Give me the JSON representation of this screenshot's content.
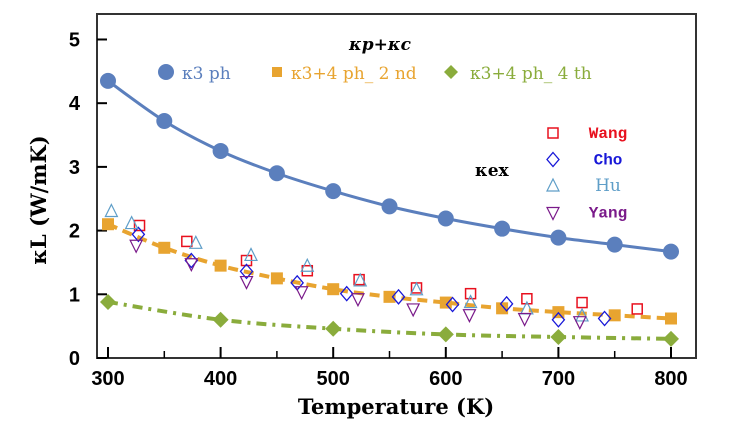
{
  "chart_data": {
    "type": "line",
    "title": "κp+κc",
    "xlabel": "Temperature (K)",
    "ylabel": "κL (W/mK)",
    "xlim": [
      290,
      822
    ],
    "ylim": [
      0,
      5.4
    ],
    "xticks": [
      300,
      400,
      500,
      600,
      700,
      800
    ],
    "yticks": [
      0,
      1,
      2,
      3,
      4,
      5
    ],
    "grid": false,
    "legend_placement": "top",
    "series": [
      {
        "name": "κ3 ph",
        "marker": "circle",
        "line": "solid",
        "color": "#5b7fbd",
        "x": [
          300,
          350,
          400,
          450,
          500,
          550,
          600,
          650,
          700,
          750,
          800
        ],
        "y": [
          4.35,
          3.72,
          3.25,
          2.9,
          2.62,
          2.38,
          2.19,
          2.03,
          1.89,
          1.78,
          1.67
        ]
      },
      {
        "name": "κ3+4 ph_ 2 nd",
        "marker": "square",
        "line": "dashed",
        "color": "#e8a430",
        "x": [
          300,
          350,
          400,
          450,
          500,
          550,
          600,
          650,
          700,
          750,
          800
        ],
        "y": [
          2.1,
          1.73,
          1.45,
          1.25,
          1.08,
          0.96,
          0.87,
          0.78,
          0.72,
          0.67,
          0.62
        ]
      },
      {
        "name": "κ3+4 ph_ 4 th",
        "marker": "diamond",
        "line": "dashdot",
        "color": "#8aac3c",
        "x": [
          300,
          400,
          500,
          600,
          700,
          800
        ],
        "y": [
          0.88,
          0.6,
          0.46,
          0.37,
          0.33,
          0.3
        ]
      }
    ],
    "experimental_label": "κex",
    "experimental": [
      {
        "name": "Wang",
        "marker": "square-open",
        "color": "#e8101e",
        "x": [
          328,
          370,
          423,
          477,
          523,
          574,
          622,
          672,
          721,
          770
        ],
        "y": [
          2.08,
          1.83,
          1.53,
          1.37,
          1.23,
          1.1,
          1.01,
          0.93,
          0.87,
          0.77
        ]
      },
      {
        "name": "Cho",
        "marker": "diamond-open",
        "color": "#1818d8",
        "x": [
          327,
          374,
          423,
          468,
          512,
          558,
          606,
          654,
          700,
          741
        ],
        "y": [
          1.94,
          1.53,
          1.36,
          1.18,
          1.01,
          0.96,
          0.84,
          0.85,
          0.6,
          0.62
        ]
      },
      {
        "name": "Hu",
        "marker": "triangle-up-open",
        "color": "#5f9ec8",
        "x": [
          303,
          321,
          378,
          427,
          477,
          524,
          574,
          622,
          672,
          721
        ],
        "y": [
          2.3,
          2.11,
          1.8,
          1.61,
          1.44,
          1.21,
          1.07,
          0.87,
          0.77,
          0.66
        ]
      },
      {
        "name": "Yang",
        "marker": "triangle-down-open",
        "color": "#7a1a8a",
        "x": [
          325,
          374,
          423,
          472,
          522,
          571,
          621,
          670,
          719
        ],
        "y": [
          1.77,
          1.48,
          1.2,
          1.04,
          0.93,
          0.77,
          0.68,
          0.62,
          0.57
        ]
      }
    ]
  }
}
